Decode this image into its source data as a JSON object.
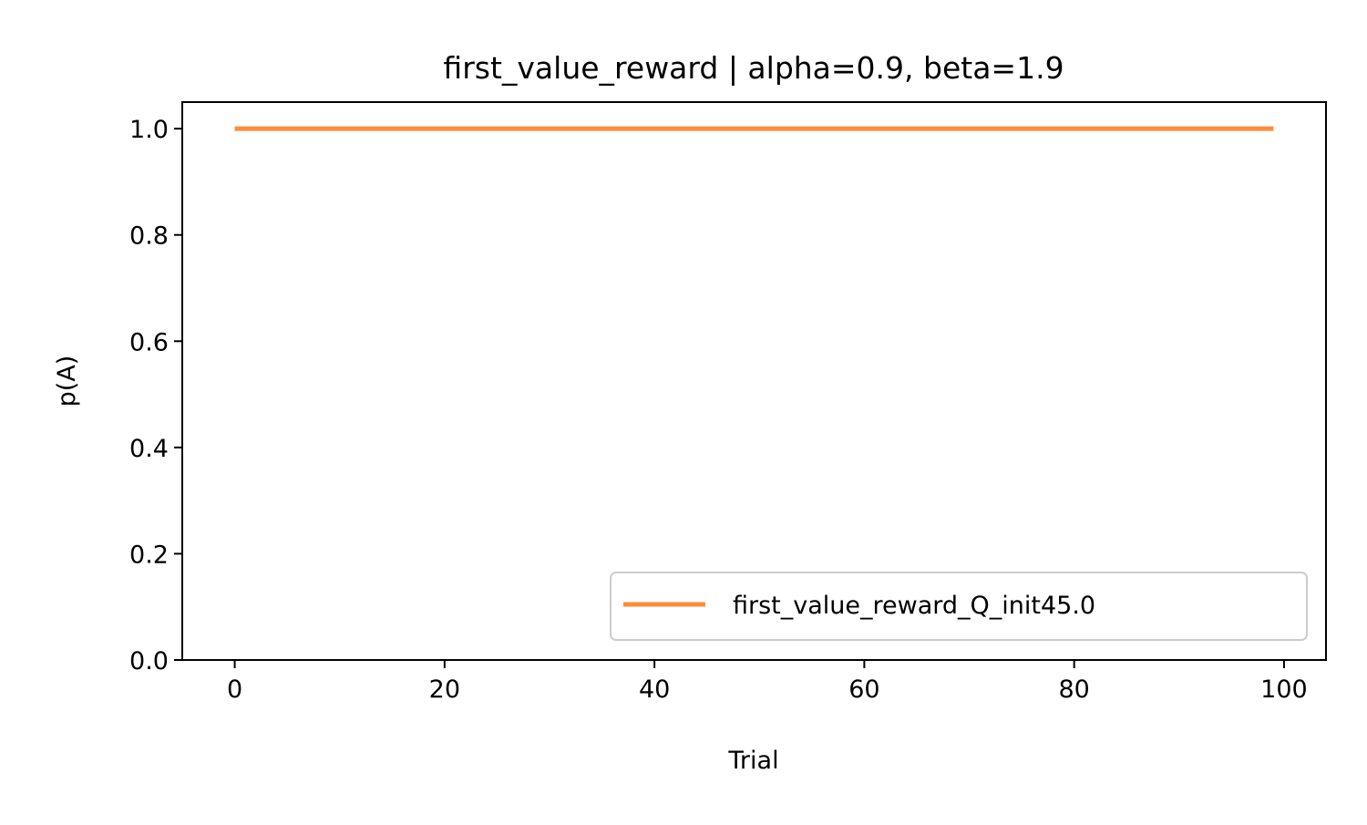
{
  "chart_data": {
    "type": "line",
    "title": "first_value_reward | alpha=0.9, beta=1.9",
    "xlabel": "Trial",
    "ylabel": "p(A)",
    "xlim": [
      -5,
      104
    ],
    "ylim": [
      0.0,
      1.05
    ],
    "x_ticks": [
      0,
      20,
      40,
      60,
      80,
      100
    ],
    "x_tick_labels": [
      "0",
      "20",
      "40",
      "60",
      "80",
      "100"
    ],
    "y_ticks": [
      0.0,
      0.2,
      0.4,
      0.6,
      0.8,
      1.0
    ],
    "y_tick_labels": [
      "0.0",
      "0.2",
      "0.4",
      "0.6",
      "0.8",
      "1.0"
    ],
    "grid": false,
    "legend_position": "lower-right",
    "series": [
      {
        "name": "first_value_reward_Q_init45.0",
        "color": "#ff8c3a",
        "x": [
          0,
          99
        ],
        "y": [
          1.0,
          1.0
        ]
      }
    ]
  }
}
